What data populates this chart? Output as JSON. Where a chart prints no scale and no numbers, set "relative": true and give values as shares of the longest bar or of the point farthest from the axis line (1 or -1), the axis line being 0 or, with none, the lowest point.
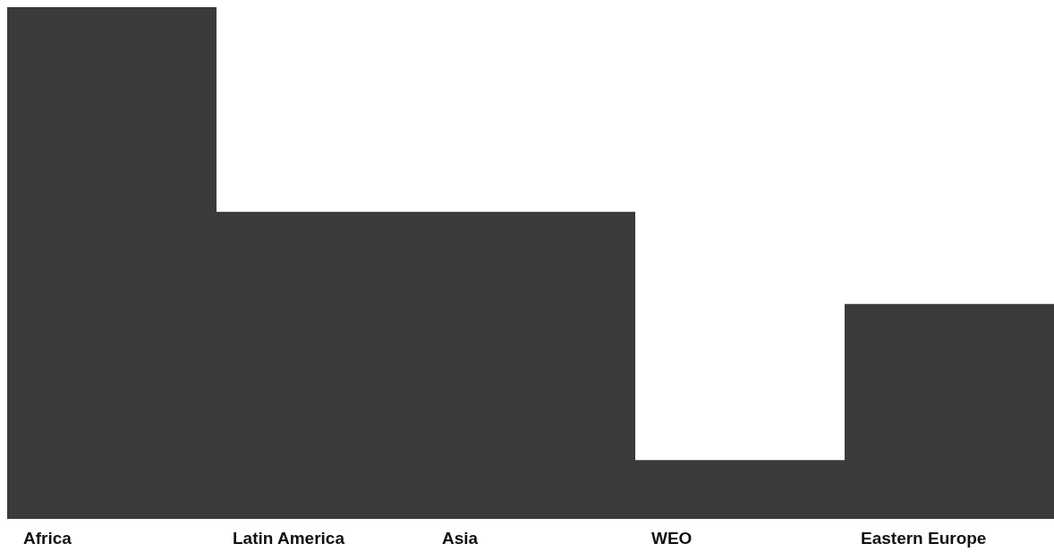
{
  "chart_data": {
    "type": "bar",
    "relative": true,
    "categories": [
      "Africa",
      "Latin America",
      "Asia",
      "WEO",
      "Eastern Europe"
    ],
    "values": [
      1,
      0.6,
      0.6,
      0.115,
      0.42
    ],
    "color": "#3a3a3a"
  }
}
